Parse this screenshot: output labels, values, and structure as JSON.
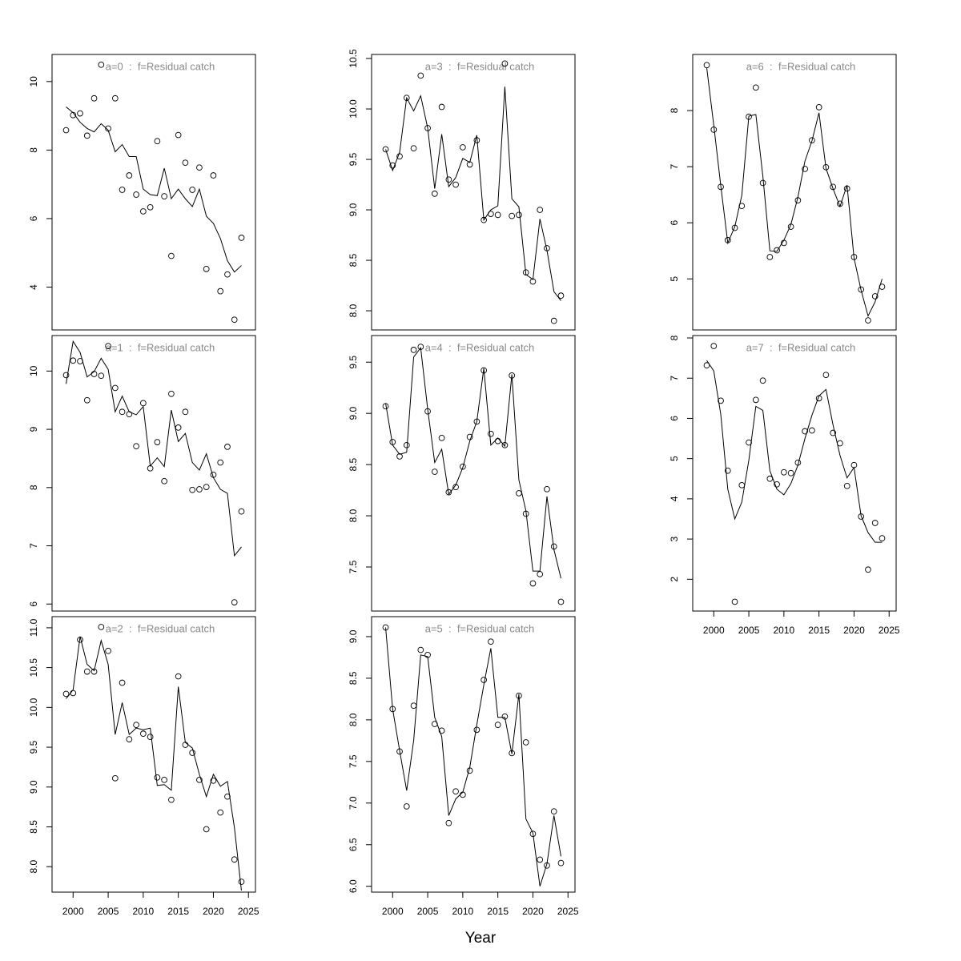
{
  "xlabel": "Year",
  "chart_data": [
    {
      "type": "line",
      "title": "a=0  :  f=Residual catch",
      "x": [
        1999,
        2000,
        2001,
        2002,
        2003,
        2004,
        2005,
        2006,
        2007,
        2008,
        2009,
        2010,
        2011,
        2012,
        2013,
        2014,
        2015,
        2016,
        2017,
        2018,
        2019,
        2020,
        2021,
        2022,
        2023,
        2024
      ],
      "xlim": [
        1997,
        2026
      ],
      "ylim": [
        2.75,
        10.79
      ],
      "yticks": [
        4,
        6,
        8,
        10
      ],
      "series": [
        {
          "style": "points",
          "color": "#000000",
          "values": [
            8.58,
            9.02,
            9.07,
            8.42,
            9.51,
            10.49,
            8.63,
            9.51,
            6.84,
            7.26,
            6.7,
            6.21,
            6.33,
            8.26,
            6.65,
            4.91,
            8.44,
            7.63,
            6.84,
            7.49,
            4.53,
            7.26,
            3.88,
            4.37,
            3.05,
            5.44
          ]
        },
        {
          "style": "line",
          "color": "#000000",
          "values": [
            9.26,
            9.09,
            8.81,
            8.63,
            8.53,
            8.77,
            8.58,
            7.95,
            8.16,
            7.81,
            7.81,
            6.86,
            6.7,
            6.67,
            7.47,
            6.58,
            6.86,
            6.58,
            6.35,
            6.86,
            6.07,
            5.86,
            5.42,
            4.77,
            4.44,
            4.63
          ]
        }
      ]
    },
    {
      "type": "line",
      "title": "a=1  :  f=Residual catch",
      "x": [
        1999,
        2000,
        2001,
        2002,
        2003,
        2004,
        2005,
        2006,
        2007,
        2008,
        2009,
        2010,
        2011,
        2012,
        2013,
        2014,
        2015,
        2016,
        2017,
        2018,
        2019,
        2020,
        2021,
        2022,
        2023,
        2024
      ],
      "xlim": [
        1997,
        2026
      ],
      "ylim": [
        5.88,
        10.61
      ],
      "yticks": [
        6,
        7,
        8,
        9,
        10
      ],
      "series": [
        {
          "style": "points",
          "color": "#000000",
          "values": [
            9.93,
            10.18,
            10.17,
            9.5,
            9.95,
            9.92,
            10.43,
            9.71,
            9.3,
            9.26,
            8.71,
            9.45,
            8.33,
            8.78,
            8.11,
            9.61,
            9.03,
            9.3,
            7.96,
            7.97,
            8.01,
            8.22,
            8.43,
            8.7,
            6.03,
            7.59
          ]
        },
        {
          "style": "line",
          "color": "#000000",
          "values": [
            9.78,
            10.51,
            10.32,
            9.9,
            9.99,
            10.22,
            10.03,
            9.3,
            9.57,
            9.3,
            9.25,
            9.39,
            8.37,
            8.51,
            8.36,
            9.33,
            8.79,
            8.93,
            8.43,
            8.3,
            8.58,
            8.17,
            7.97,
            7.9,
            6.83,
            6.98
          ]
        }
      ]
    },
    {
      "type": "line",
      "title": "a=2  :  f=Residual catch",
      "x": [
        1999,
        2000,
        2001,
        2002,
        2003,
        2004,
        2005,
        2006,
        2007,
        2008,
        2009,
        2010,
        2011,
        2012,
        2013,
        2014,
        2015,
        2016,
        2017,
        2018,
        2019,
        2020,
        2021,
        2022,
        2023,
        2024
      ],
      "xlim": [
        1997,
        2026
      ],
      "xticks": [
        2000,
        2005,
        2010,
        2015,
        2020,
        2025
      ],
      "ylim": [
        7.68,
        11.14
      ],
      "yticks": [
        {
          "value": 8,
          "label": "8.0"
        },
        8.5,
        {
          "value": 9,
          "label": "9.0"
        },
        9.5,
        {
          "value": 10,
          "label": "10.0"
        },
        10.5,
        {
          "value": 11,
          "label": "11.0"
        }
      ],
      "series": [
        {
          "style": "points",
          "color": "#000000",
          "values": [
            10.17,
            10.18,
            10.85,
            10.45,
            10.45,
            11.01,
            10.71,
            9.11,
            10.31,
            9.6,
            9.78,
            9.67,
            9.63,
            9.12,
            9.09,
            8.84,
            10.39,
            9.53,
            9.43,
            9.09,
            8.47,
            9.08,
            8.68,
            8.88,
            8.09,
            7.81
          ]
        },
        {
          "style": "line",
          "color": "#000000",
          "values": [
            10.11,
            10.22,
            10.89,
            10.54,
            10.46,
            10.84,
            10.54,
            9.66,
            10.06,
            9.66,
            9.74,
            9.72,
            9.74,
            9.02,
            9.03,
            8.96,
            10.26,
            9.56,
            9.49,
            9.16,
            8.88,
            9.16,
            9.01,
            9.07,
            8.49,
            7.7
          ]
        }
      ]
    },
    {
      "type": "line",
      "title": "a=3  :  f=Residual catch",
      "x": [
        1999,
        2000,
        2001,
        2002,
        2003,
        2004,
        2005,
        2006,
        2007,
        2008,
        2009,
        2010,
        2011,
        2012,
        2013,
        2014,
        2015,
        2016,
        2017,
        2018,
        2019,
        2020,
        2021,
        2022,
        2023,
        2024
      ],
      "xlim": [
        1997,
        2026
      ],
      "ylim": [
        7.81,
        10.54
      ],
      "yticks": [
        {
          "value": 8,
          "label": "8.0"
        },
        8.5,
        {
          "value": 9,
          "label": "9.0"
        },
        9.5,
        {
          "value": 10,
          "label": "10.0"
        },
        10.5
      ],
      "series": [
        {
          "style": "points",
          "color": "#000000",
          "values": [
            9.6,
            9.44,
            9.53,
            10.11,
            9.61,
            10.33,
            9.81,
            9.16,
            10.02,
            9.3,
            9.25,
            9.62,
            9.45,
            9.69,
            8.9,
            8.96,
            8.95,
            10.45,
            8.94,
            8.95,
            8.38,
            8.29,
            9.0,
            8.62,
            7.9,
            8.15
          ]
        },
        {
          "style": "line",
          "color": "#000000",
          "values": [
            9.6,
            9.39,
            9.57,
            10.11,
            9.98,
            10.13,
            9.81,
            9.21,
            9.75,
            9.23,
            9.32,
            9.51,
            9.47,
            9.74,
            8.9,
            9.0,
            9.04,
            10.22,
            9.11,
            9.03,
            8.36,
            8.31,
            8.91,
            8.6,
            8.19,
            8.1
          ]
        }
      ]
    },
    {
      "type": "line",
      "title": "a=4  :  f=Residual catch",
      "x": [
        1999,
        2000,
        2001,
        2002,
        2003,
        2004,
        2005,
        2006,
        2007,
        2008,
        2009,
        2010,
        2011,
        2012,
        2013,
        2014,
        2015,
        2016,
        2017,
        2018,
        2019,
        2020,
        2021,
        2022,
        2023,
        2024
      ],
      "xlim": [
        1997,
        2026
      ],
      "ylim": [
        7.07,
        9.76
      ],
      "yticks": [
        7.5,
        {
          "value": 8,
          "label": "8.0"
        },
        8.5,
        {
          "value": 9,
          "label": "9.0"
        },
        9.5
      ],
      "series": [
        {
          "style": "points",
          "color": "#000000",
          "values": [
            9.07,
            8.72,
            8.58,
            8.69,
            9.62,
            9.65,
            9.02,
            8.43,
            8.76,
            8.23,
            8.28,
            8.48,
            8.77,
            8.92,
            9.42,
            8.8,
            8.73,
            8.69,
            9.37,
            8.22,
            8.02,
            7.34,
            7.43,
            8.26,
            7.7,
            7.16
          ]
        },
        {
          "style": "line",
          "color": "#000000",
          "values": [
            9.1,
            8.69,
            8.6,
            8.62,
            9.55,
            9.64,
            9.04,
            8.52,
            8.65,
            8.21,
            8.3,
            8.47,
            8.73,
            8.92,
            9.44,
            8.69,
            8.76,
            8.68,
            9.38,
            8.35,
            8.05,
            7.46,
            7.46,
            8.19,
            7.67,
            7.39
          ]
        }
      ]
    },
    {
      "type": "line",
      "title": "a=5  :  f=Residual catch",
      "x": [
        1999,
        2000,
        2001,
        2002,
        2003,
        2004,
        2005,
        2006,
        2007,
        2008,
        2009,
        2010,
        2011,
        2012,
        2013,
        2014,
        2015,
        2016,
        2017,
        2018,
        2019,
        2020,
        2021,
        2022,
        2023,
        2024
      ],
      "xlim": [
        1997,
        2026
      ],
      "xticks": [
        2000,
        2005,
        2010,
        2015,
        2020,
        2025
      ],
      "ylim": [
        5.93,
        9.24
      ],
      "yticks": [
        {
          "value": 6,
          "label": "6.0"
        },
        6.5,
        {
          "value": 7,
          "label": "7.0"
        },
        7.5,
        {
          "value": 8,
          "label": "8.0"
        },
        8.5,
        {
          "value": 9,
          "label": "9.0"
        }
      ],
      "series": [
        {
          "style": "points",
          "color": "#000000",
          "values": [
            9.11,
            8.13,
            7.62,
            6.96,
            8.17,
            8.84,
            8.78,
            7.95,
            7.87,
            6.76,
            7.14,
            7.1,
            7.39,
            7.88,
            8.48,
            8.94,
            7.94,
            8.04,
            7.6,
            8.29,
            7.73,
            6.63,
            6.32,
            6.25,
            6.9,
            6.28
          ]
        },
        {
          "style": "line",
          "color": "#000000",
          "values": [
            9.11,
            8.13,
            7.63,
            7.15,
            7.75,
            8.78,
            8.76,
            8.03,
            7.8,
            6.85,
            7.05,
            7.13,
            7.43,
            7.94,
            8.42,
            8.86,
            8.03,
            8.03,
            7.59,
            8.31,
            6.81,
            6.64,
            6.0,
            6.27,
            6.85,
            6.36
          ]
        }
      ]
    },
    {
      "type": "line",
      "title": "a=6  :  f=Residual catch",
      "x": [
        1999,
        2000,
        2001,
        2002,
        2003,
        2004,
        2005,
        2006,
        2007,
        2008,
        2009,
        2010,
        2011,
        2012,
        2013,
        2014,
        2015,
        2016,
        2017,
        2018,
        2019,
        2020,
        2021,
        2022,
        2023,
        2024
      ],
      "xlim": [
        1997,
        2026
      ],
      "ylim": [
        4.09,
        9.0
      ],
      "yticks": [
        5,
        6,
        7,
        8
      ],
      "series": [
        {
          "style": "points",
          "color": "#000000",
          "values": [
            8.81,
            7.66,
            6.64,
            5.69,
            5.91,
            6.3,
            7.89,
            8.41,
            6.71,
            5.39,
            5.51,
            5.64,
            5.93,
            6.4,
            6.96,
            7.47,
            8.06,
            6.99,
            6.64,
            6.34,
            6.61,
            5.39,
            4.81,
            4.26,
            4.69,
            4.86
          ]
        },
        {
          "style": "line",
          "color": "#000000",
          "values": [
            8.76,
            7.74,
            6.66,
            5.64,
            5.93,
            6.49,
            7.9,
            7.93,
            6.83,
            5.5,
            5.49,
            5.69,
            5.97,
            6.46,
            7.1,
            7.46,
            7.96,
            6.97,
            6.61,
            6.29,
            6.67,
            5.37,
            4.8,
            4.34,
            4.59,
            5.0
          ]
        }
      ]
    },
    {
      "type": "line",
      "title": "a=7  :  f=Residual catch",
      "x": [
        1999,
        2000,
        2001,
        2002,
        2003,
        2004,
        2005,
        2006,
        2007,
        2008,
        2009,
        2010,
        2011,
        2012,
        2013,
        2014,
        2015,
        2016,
        2017,
        2018,
        2019,
        2020,
        2021,
        2022,
        2023,
        2024
      ],
      "xlim": [
        1997,
        2026
      ],
      "xticks": [
        2000,
        2005,
        2010,
        2015,
        2020,
        2025
      ],
      "ylim": [
        1.21,
        8.06
      ],
      "yticks": [
        2,
        3,
        4,
        5,
        6,
        7,
        8
      ],
      "series": [
        {
          "style": "points",
          "color": "#000000",
          "values": [
            7.32,
            7.8,
            6.44,
            4.7,
            1.44,
            4.34,
            5.4,
            6.46,
            6.94,
            4.5,
            4.36,
            4.66,
            4.64,
            4.9,
            5.68,
            5.7,
            6.5,
            7.08,
            5.64,
            5.38,
            4.32,
            4.84,
            3.56,
            2.24,
            3.4,
            3.02
          ]
        },
        {
          "style": "line",
          "color": "#000000",
          "values": [
            7.44,
            7.18,
            6.1,
            4.24,
            3.5,
            3.92,
            4.96,
            6.3,
            6.2,
            4.7,
            4.24,
            4.1,
            4.38,
            4.84,
            5.5,
            6.08,
            6.56,
            6.72,
            5.84,
            5.08,
            4.52,
            4.78,
            3.58,
            3.16,
            2.92,
            2.92
          ]
        }
      ]
    }
  ]
}
